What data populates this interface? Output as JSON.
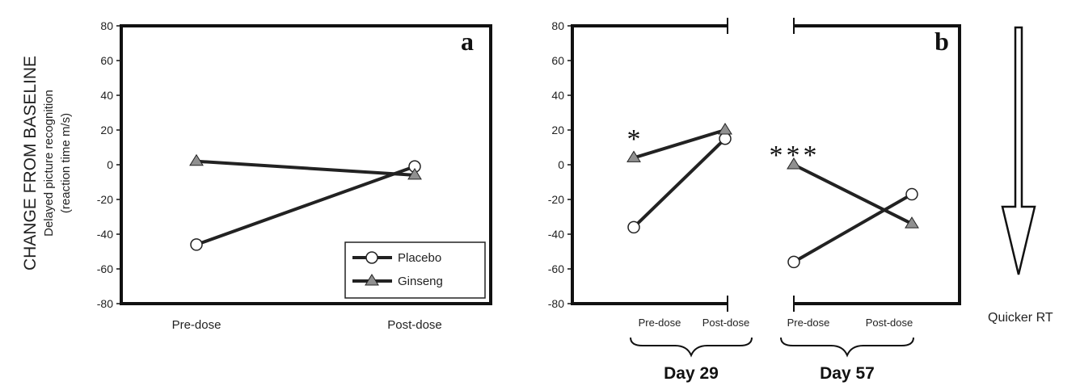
{
  "y_axis": {
    "label_main": "CHANGE FROM BASELINE",
    "label_sub1": "Delayed picture recognition",
    "label_sub2": "(reaction time m/s)"
  },
  "colors": {
    "placebo_fill": "#ffffff",
    "ginseng_fill": "#909090",
    "line": "#222222"
  },
  "legend": {
    "placebo": "Placebo",
    "ginseng": "Ginseng"
  },
  "arrow": {
    "label": "Quicker RT"
  },
  "chart_data": [
    {
      "type": "line",
      "panel": "a",
      "categories": [
        "Pre-dose",
        "Post-dose"
      ],
      "ylim": [
        -80,
        80
      ],
      "yticks": [
        "80",
        "60",
        "40",
        "20",
        "0",
        "-20",
        "-40",
        "-60",
        "-80"
      ],
      "series": [
        {
          "name": "Placebo",
          "values": [
            -46,
            -1
          ]
        },
        {
          "name": "Ginseng",
          "values": [
            2,
            -6
          ]
        }
      ],
      "legend": "bottom-right"
    },
    {
      "type": "line",
      "panel": "b",
      "groups": [
        {
          "label": "Day 29",
          "categories": [
            "Pre-dose",
            "Post-dose"
          ],
          "annotation": "*",
          "series": [
            {
              "name": "Placebo",
              "values": [
                -36,
                15
              ]
            },
            {
              "name": "Ginseng",
              "values": [
                4,
                20
              ]
            }
          ]
        },
        {
          "label": "Day 57",
          "categories": [
            "Pre-dose",
            "Post-dose"
          ],
          "annotation": "***",
          "series": [
            {
              "name": "Placebo",
              "values": [
                -56,
                -17
              ]
            },
            {
              "name": "Ginseng",
              "values": [
                0,
                -34
              ]
            }
          ]
        }
      ],
      "ylim": [
        -80,
        80
      ],
      "yticks": [
        "80",
        "60",
        "40",
        "20",
        "0",
        "-20",
        "-40",
        "-60",
        "-80"
      ]
    }
  ]
}
